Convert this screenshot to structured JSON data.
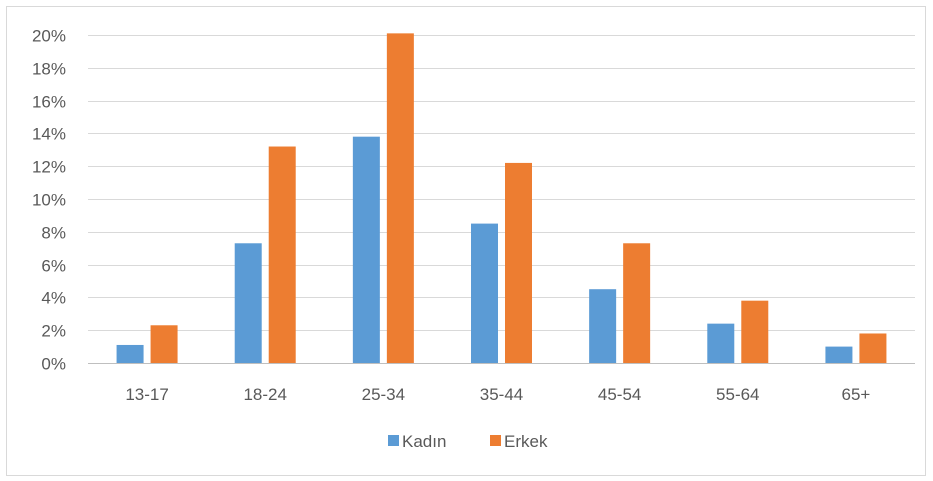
{
  "chart_data": {
    "type": "bar",
    "categories": [
      "13-17",
      "18-24",
      "25-34",
      "35-44",
      "45-54",
      "55-64",
      "65+"
    ],
    "series": [
      {
        "name": "Kadın",
        "values": [
          1.1,
          7.3,
          13.8,
          8.5,
          4.5,
          2.4,
          1.0
        ],
        "color": "#5b9bd5"
      },
      {
        "name": "Erkek",
        "values": [
          2.3,
          13.2,
          20.1,
          12.2,
          7.3,
          3.8,
          1.8
        ],
        "color": "#ed7d31"
      }
    ],
    "yticks": [
      "0%",
      "2%",
      "4%",
      "6%",
      "8%",
      "10%",
      "12%",
      "14%",
      "16%",
      "18%",
      "20%"
    ],
    "ylim": [
      0,
      20
    ],
    "grid": true,
    "legend_position": "bottom",
    "title": "",
    "xlabel": "",
    "ylabel": ""
  }
}
